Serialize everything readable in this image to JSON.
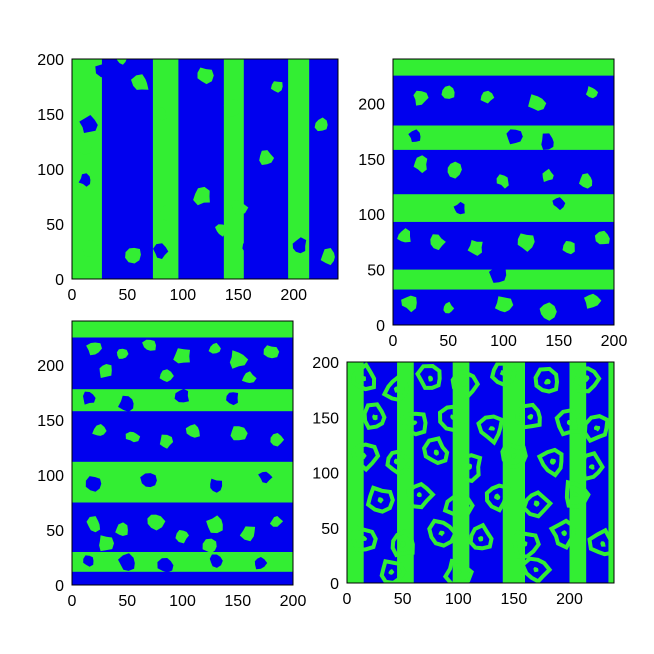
{
  "chart_data": [
    {
      "type": "heatmap",
      "panel": "top-left",
      "title": "",
      "xlabel": "",
      "ylabel": "",
      "xlim": [
        0,
        240
      ],
      "ylim": [
        0,
        200
      ],
      "xticks": [
        0,
        50,
        100,
        150,
        200
      ],
      "yticks": [
        0,
        50,
        100,
        150,
        200
      ],
      "pattern": "vertical stripes",
      "blue_bands_x": [
        [
          27,
          73
        ],
        [
          96,
          137
        ],
        [
          155,
          195
        ],
        [
          214,
          240
        ]
      ],
      "green_spots": [
        [
          10,
          120
        ],
        [
          15,
          28
        ],
        [
          45,
          200
        ],
        [
          55,
          22
        ],
        [
          62,
          178
        ],
        [
          80,
          150
        ],
        [
          85,
          60
        ],
        [
          120,
          185
        ],
        [
          118,
          75
        ],
        [
          135,
          45
        ],
        [
          145,
          155
        ],
        [
          150,
          65
        ],
        [
          175,
          110
        ],
        [
          185,
          175
        ],
        [
          225,
          140
        ],
        [
          232,
          20
        ]
      ],
      "blue_spots": [
        [
          15,
          140
        ],
        [
          30,
          190
        ],
        [
          42,
          85
        ],
        [
          12,
          90
        ],
        [
          65,
          100
        ],
        [
          80,
          25
        ],
        [
          160,
          30
        ],
        [
          170,
          160
        ],
        [
          205,
          30
        ]
      ]
    },
    {
      "type": "heatmap",
      "panel": "top-right",
      "title": "",
      "xlabel": "",
      "ylabel": "",
      "xlim": [
        0,
        200
      ],
      "ylim": [
        0,
        240
      ],
      "xticks": [
        0,
        50,
        100,
        150,
        200
      ],
      "yticks": [
        0,
        50,
        100,
        150,
        200
      ],
      "pattern": "horizontal stripes",
      "blue_bands_y": [
        [
          0,
          32
        ],
        [
          50,
          93
        ],
        [
          118,
          158
        ],
        [
          180,
          225
        ]
      ],
      "green_spots": [
        [
          25,
          205
        ],
        [
          50,
          210
        ],
        [
          85,
          205
        ],
        [
          130,
          200
        ],
        [
          180,
          210
        ],
        [
          25,
          145
        ],
        [
          55,
          140
        ],
        [
          100,
          130
        ],
        [
          140,
          135
        ],
        [
          175,
          130
        ],
        [
          10,
          80
        ],
        [
          40,
          75
        ],
        [
          75,
          70
        ],
        [
          120,
          75
        ],
        [
          160,
          70
        ],
        [
          190,
          78
        ],
        [
          15,
          20
        ],
        [
          50,
          15
        ],
        [
          100,
          18
        ],
        [
          140,
          12
        ],
        [
          180,
          22
        ]
      ],
      "blue_spots": [
        [
          20,
          170
        ],
        [
          110,
          170
        ],
        [
          140,
          165
        ],
        [
          60,
          105
        ],
        [
          150,
          110
        ],
        [
          95,
          45
        ]
      ]
    },
    {
      "type": "heatmap",
      "panel": "bottom-left",
      "title": "",
      "xlabel": "",
      "ylabel": "",
      "xlim": [
        0,
        200
      ],
      "ylim": [
        0,
        240
      ],
      "xticks": [
        0,
        50,
        100,
        150,
        200
      ],
      "yticks": [
        0,
        50,
        100,
        150,
        200
      ],
      "pattern": "horizontal stripes",
      "blue_bands_y": [
        [
          0,
          12
        ],
        [
          30,
          75
        ],
        [
          112,
          158
        ],
        [
          178,
          225
        ]
      ],
      "green_spots": [
        [
          20,
          215
        ],
        [
          45,
          210
        ],
        [
          70,
          218
        ],
        [
          100,
          208
        ],
        [
          130,
          215
        ],
        [
          150,
          205
        ],
        [
          180,
          212
        ],
        [
          30,
          195
        ],
        [
          85,
          190
        ],
        [
          160,
          188
        ],
        [
          25,
          140
        ],
        [
          55,
          135
        ],
        [
          85,
          130
        ],
        [
          110,
          140
        ],
        [
          150,
          138
        ],
        [
          185,
          132
        ],
        [
          20,
          55
        ],
        [
          45,
          50
        ],
        [
          75,
          58
        ],
        [
          100,
          45
        ],
        [
          130,
          55
        ],
        [
          160,
          48
        ],
        [
          185,
          58
        ],
        [
          30,
          38
        ],
        [
          125,
          35
        ]
      ],
      "blue_spots": [
        [
          15,
          170
        ],
        [
          50,
          165
        ],
        [
          100,
          172
        ],
        [
          145,
          170
        ],
        [
          20,
          92
        ],
        [
          70,
          95
        ],
        [
          130,
          90
        ],
        [
          175,
          98
        ],
        [
          15,
          22
        ],
        [
          50,
          20
        ],
        [
          85,
          18
        ],
        [
          130,
          22
        ],
        [
          170,
          20
        ]
      ]
    },
    {
      "type": "heatmap",
      "panel": "bottom-right",
      "title": "",
      "xlabel": "",
      "ylabel": "",
      "xlim": [
        0,
        240
      ],
      "ylim": [
        0,
        200
      ],
      "xticks": [
        0,
        50,
        100,
        150,
        200
      ],
      "yticks": [
        0,
        50,
        100,
        150,
        200
      ],
      "pattern": "vertical stripes with green ring cells",
      "blue_bands_x": [
        [
          15,
          45
        ],
        [
          60,
          95
        ],
        [
          110,
          140
        ],
        [
          160,
          200
        ],
        [
          215,
          235
        ]
      ],
      "ring_centers": [
        [
          15,
          185
        ],
        [
          45,
          175
        ],
        [
          75,
          185
        ],
        [
          105,
          180
        ],
        [
          140,
          190
        ],
        [
          180,
          182
        ],
        [
          215,
          185
        ],
        [
          25,
          150
        ],
        [
          60,
          145
        ],
        [
          95,
          150
        ],
        [
          130,
          140
        ],
        [
          165,
          150
        ],
        [
          200,
          145
        ],
        [
          225,
          140
        ],
        [
          15,
          115
        ],
        [
          45,
          110
        ],
        [
          80,
          118
        ],
        [
          110,
          105
        ],
        [
          150,
          115
        ],
        [
          185,
          110
        ],
        [
          220,
          105
        ],
        [
          30,
          75
        ],
        [
          65,
          80
        ],
        [
          100,
          70
        ],
        [
          135,
          78
        ],
        [
          170,
          72
        ],
        [
          205,
          80
        ],
        [
          15,
          40
        ],
        [
          50,
          35
        ],
        [
          85,
          45
        ],
        [
          120,
          40
        ],
        [
          160,
          35
        ],
        [
          195,
          45
        ],
        [
          230,
          35
        ],
        [
          40,
          10
        ],
        [
          100,
          10
        ],
        [
          170,
          12
        ]
      ]
    }
  ],
  "colors": {
    "phase_a": "#0000ee",
    "phase_b": "#33ee33",
    "tick_text": "#000000",
    "background": "#ffffff"
  }
}
